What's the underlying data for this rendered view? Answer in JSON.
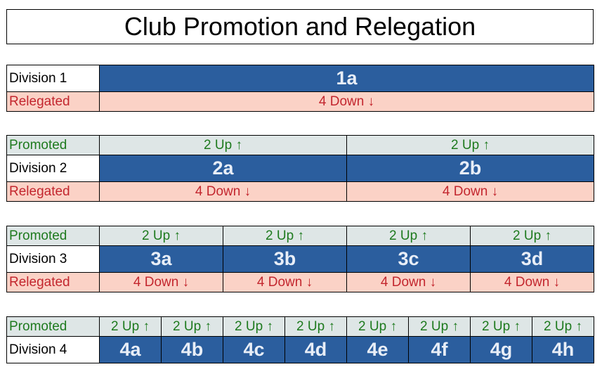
{
  "title": "Club Promotion and Relegation",
  "labels": {
    "promoted": "Promoted",
    "relegated": "Relegated",
    "up": "2 Up ↑",
    "down": "4 Down ↓"
  },
  "divisions": [
    {
      "name": "Division 1",
      "leagues": [
        "1a"
      ]
    },
    {
      "name": "Division 2",
      "leagues": [
        "2a",
        "2b"
      ]
    },
    {
      "name": "Division 3",
      "leagues": [
        "3a",
        "3b",
        "3c",
        "3d"
      ]
    },
    {
      "name": "Division 4",
      "leagues": [
        "4a",
        "4b",
        "4c",
        "4d",
        "4e",
        "4f",
        "4g",
        "4h"
      ]
    }
  ],
  "colors": {
    "league_fill": "#2b5e9e",
    "promoted_fill": "#dee6e6",
    "promoted_text": "#1e7a1e",
    "relegated_fill": "#fbd2c6",
    "relegated_text": "#c3262e"
  }
}
